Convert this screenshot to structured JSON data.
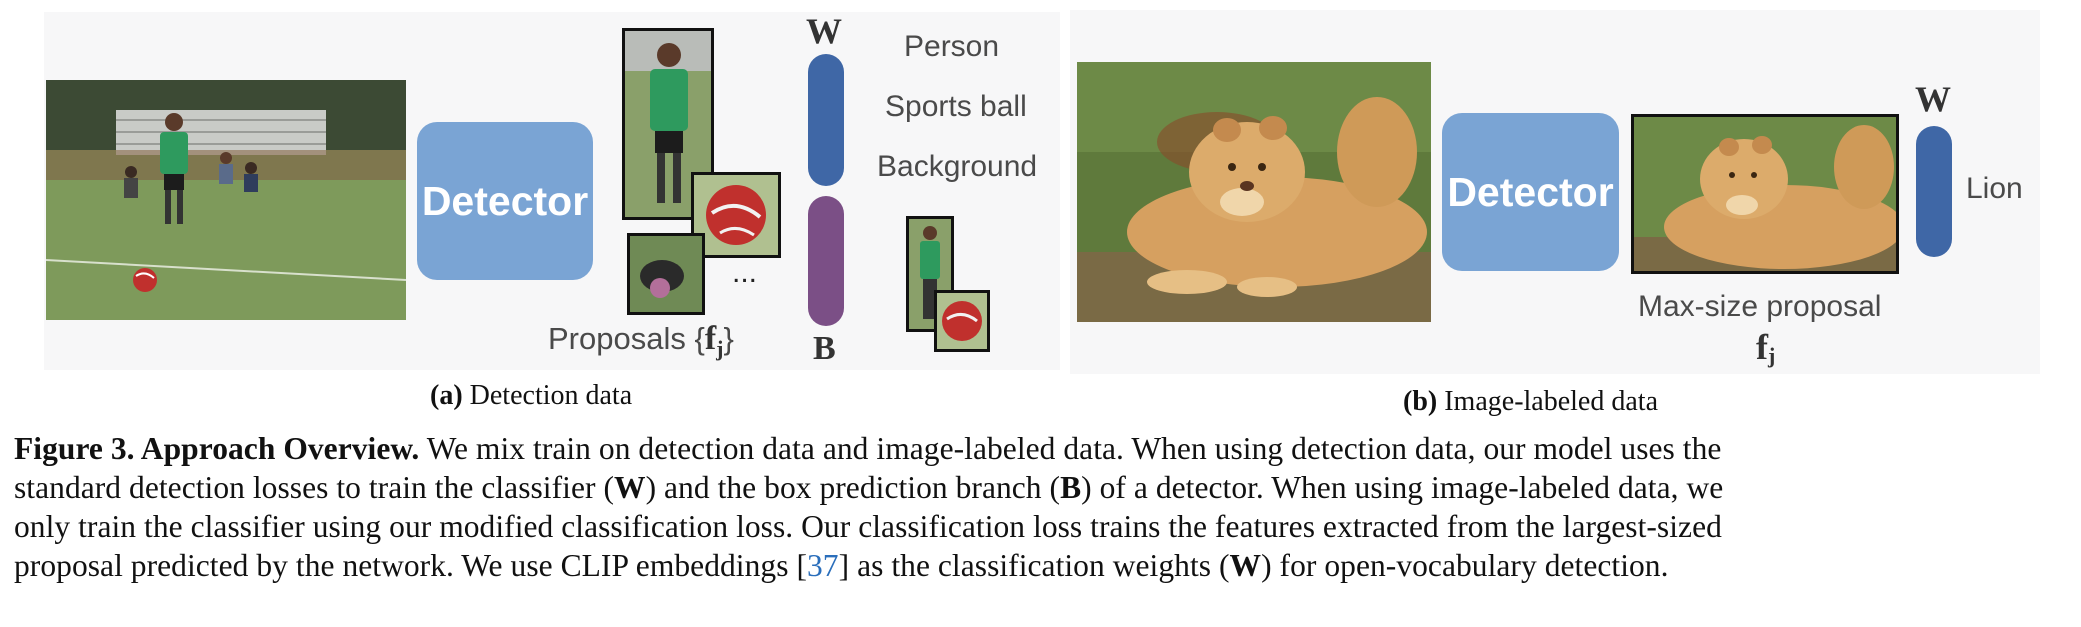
{
  "panel_a": {
    "detector_label": "Detector",
    "proposals_label": "Proposals",
    "proposals_brace_open": "{",
    "proposals_brace_close": "}",
    "feature_symbol": "f",
    "feature_subscript": "j",
    "ellipsis": "...",
    "classifier_weight_label": "W",
    "box_branch_label": "B",
    "class_labels": [
      "Person",
      "Sports ball",
      "Background"
    ],
    "sub_caption_letter": "(a)",
    "sub_caption_text": "Detection data"
  },
  "panel_b": {
    "detector_label": "Detector",
    "classifier_weight_label": "W",
    "class_label": "Lion",
    "proposal_label": "Max-size proposal",
    "feature_symbol": "f",
    "feature_subscript": "j",
    "sub_caption_letter": "(b)",
    "sub_caption_text": "Image-labeled data"
  },
  "caption": {
    "figure_label": "Figure 3. Approach Overview.",
    "line1": "We mix train on detection data and image-labeled data. When using detection data, our model uses the",
    "line2_a": "standard detection losses to train the classifier (",
    "line2_w": "W",
    "line2_b": ") and the box prediction branch (",
    "line2_bb": "B",
    "line2_c": ") of a detector. When using image-labeled data, we",
    "line3": "only train the classifier using our modified classification loss. Our classification loss trains the features extracted from the largest-sized",
    "line4_a": "proposal predicted by the network. We use CLIP embeddings [",
    "line4_cite": "37",
    "line4_b": "] as the classification weights (",
    "line4_w": "W",
    "line4_c": ") for open-vocabulary detection."
  },
  "colors": {
    "detector": "#7aa4d4",
    "w_bar": "#3f67a6",
    "b_bar": "#7b4f86",
    "panel_bg": "#f7f7f8",
    "citation": "#2a6ebb"
  }
}
